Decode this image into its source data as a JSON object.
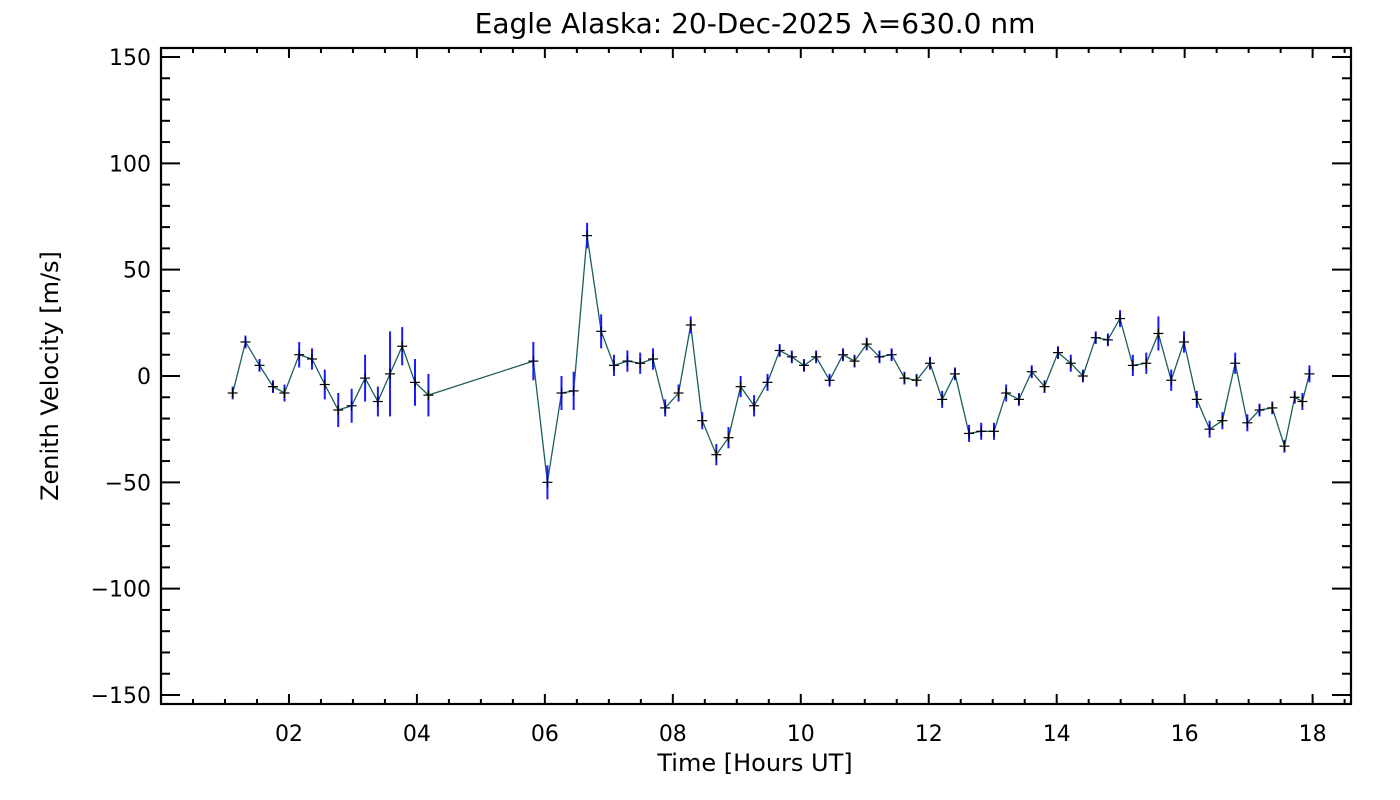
{
  "chart_data": {
    "type": "line",
    "title": "Eagle Alaska: 20-Dec-2025 λ=630.0 nm",
    "xlabel": "Time [Hours UT]",
    "ylabel": "Zenith Velocity [m/s]",
    "xlim": [
      0.0,
      18.6
    ],
    "ylim": [
      -150,
      150
    ],
    "xticks": [
      2,
      4,
      6,
      8,
      10,
      12,
      14,
      16,
      18
    ],
    "xtick_labels": [
      "02",
      "04",
      "06",
      "08",
      "10",
      "12",
      "14",
      "16",
      "18"
    ],
    "yticks": [
      150,
      100,
      50,
      0,
      -50,
      -100,
      -150
    ],
    "ytick_labels": [
      "150",
      "100",
      "50",
      "0",
      "−50",
      "−100",
      "−150"
    ],
    "grid": false,
    "colors": {
      "line": "#1b5e5e",
      "error_bar": "#1a1aff",
      "marker": "#000000"
    },
    "series": [
      {
        "name": "Zenith Velocity",
        "x": [
          1.12,
          1.32,
          1.54,
          1.75,
          1.93,
          2.16,
          2.36,
          2.56,
          2.77,
          2.98,
          3.19,
          3.39,
          3.58,
          3.77,
          3.97,
          4.18,
          5.82,
          6.04,
          6.26,
          6.45,
          6.66,
          6.88,
          7.08,
          7.29,
          7.49,
          7.69,
          7.88,
          8.09,
          8.28,
          8.46,
          8.68,
          8.87,
          9.06,
          9.27,
          9.48,
          9.67,
          9.86,
          10.05,
          10.24,
          10.45,
          10.66,
          10.84,
          11.03,
          11.23,
          11.42,
          11.62,
          11.81,
          12.02,
          12.21,
          12.41,
          12.63,
          12.82,
          13.02,
          13.21,
          13.41,
          13.61,
          13.81,
          14.02,
          14.22,
          14.41,
          14.61,
          14.8,
          14.99,
          15.19,
          15.4,
          15.59,
          15.79,
          15.99,
          16.19,
          16.39,
          16.59,
          16.79,
          16.98,
          17.17,
          17.37,
          17.56,
          17.72,
          17.84,
          17.95
        ],
        "y": [
          -8,
          16,
          5,
          -5,
          -8,
          10,
          8,
          -4,
          -16,
          -14,
          -1,
          -12,
          1,
          14,
          -3,
          -9,
          7,
          -50,
          -8,
          -7,
          66,
          21,
          5,
          7,
          6,
          8,
          -15,
          -8,
          24,
          -21,
          -37,
          -29,
          -5,
          -14,
          -3,
          12,
          9,
          5,
          9,
          -2,
          10,
          7,
          15,
          9,
          10,
          -1,
          -2,
          6,
          -11,
          1,
          -27,
          -26,
          -26,
          -8,
          -11,
          2,
          -5,
          11,
          6,
          0,
          18,
          17,
          27,
          5,
          6,
          20,
          -2,
          16,
          -11,
          -25,
          -21,
          6,
          -22,
          -16,
          -15,
          -33,
          -10,
          -12,
          1
        ],
        "err": [
          3,
          3,
          3,
          3,
          4,
          6,
          5,
          7,
          8,
          8,
          11,
          7,
          20,
          9,
          11,
          10,
          9,
          8,
          8,
          9,
          6,
          8,
          5,
          5,
          5,
          5,
          4,
          4,
          4,
          4,
          5,
          5,
          5,
          5,
          4,
          3,
          3,
          3,
          3,
          3,
          3,
          3,
          3,
          3,
          3,
          3,
          3,
          3,
          4,
          3,
          4,
          4,
          4,
          4,
          3,
          3,
          3,
          3,
          4,
          3,
          3,
          3,
          4,
          5,
          5,
          8,
          5,
          5,
          4,
          4,
          4,
          5,
          4,
          3,
          3,
          3,
          3,
          4,
          4
        ]
      }
    ]
  }
}
